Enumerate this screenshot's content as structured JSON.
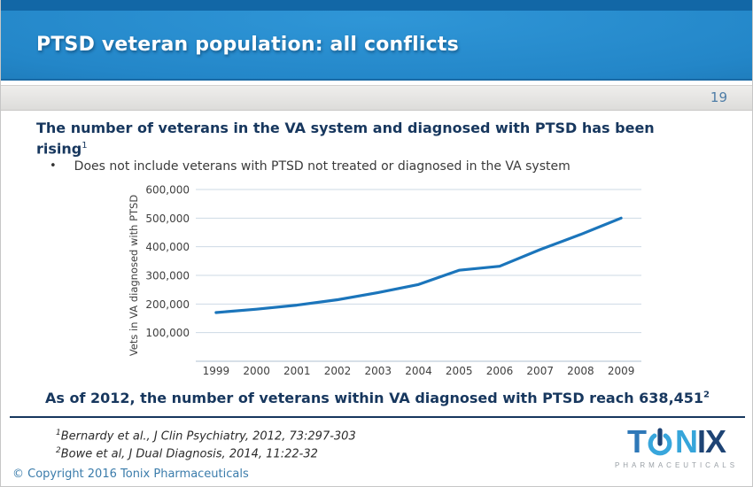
{
  "slide": {
    "title": "PTSD veteran population: all conflicts",
    "page_number": "19"
  },
  "heading": {
    "line1": "The number of veterans in the VA system and diagnosed with PTSD has been",
    "line2": "rising",
    "sup": "1"
  },
  "bullet": {
    "marker": "•",
    "text": "Does not include veterans with PTSD not treated or diagnosed in the VA system"
  },
  "chart_data": {
    "type": "line",
    "title": "",
    "xlabel": "",
    "ylabel": "Vets in VA diagnosed with PTSD",
    "categories": [
      "1999",
      "2000",
      "2001",
      "2002",
      "2003",
      "2004",
      "2005",
      "2006",
      "2007",
      "2008",
      "2009"
    ],
    "series": [
      {
        "name": "Vets in VA diagnosed with PTSD",
        "values": [
          170000,
          182000,
          196000,
          215000,
          240000,
          268000,
          318000,
          332000,
          390000,
          443000,
          500000
        ]
      }
    ],
    "ylim": [
      0,
      600000
    ],
    "ytick_step": 100000,
    "ytick_labels": [
      "100,000",
      "200,000",
      "300,000",
      "400,000",
      "500,000",
      "600,000"
    ],
    "grid": "horizontal",
    "legend": "none",
    "line_color": "#1b75bb",
    "gridline_color": "#cdd9e4",
    "axis_line_color": "#bfcedb",
    "tick_text_color": "#404040"
  },
  "statement": {
    "text": "As of 2012, the number of veterans within VA diagnosed with PTSD reach 638,451",
    "sup": "2"
  },
  "footnotes": [
    {
      "sup": "1",
      "text": "Bernardy et al., J Clin Psychiatry, 2012, 73:297-303"
    },
    {
      "sup": "2",
      "text": "Bowe et al, J Dual Diagnosis, 2014, 11:22-32"
    }
  ],
  "footer": {
    "copyright": "© Copyright 2016 Tonix Pharmaceuticals",
    "logo": {
      "t": "T",
      "n": "N",
      "i": "I",
      "x": "X",
      "subtitle": "PHARMACEUTICALS"
    }
  },
  "colors": {
    "header_blue_light": "#2f96d7",
    "header_blue_dark": "#15679f",
    "navy_text": "#17375e",
    "page_number_blue": "#4e7da7",
    "copyright_blue": "#3b7cab",
    "logo_blue_medium": "#2e78b8",
    "logo_blue_light": "#36a5da",
    "logo_navy": "#1e4475",
    "logo_gray": "#9aa0a6"
  }
}
